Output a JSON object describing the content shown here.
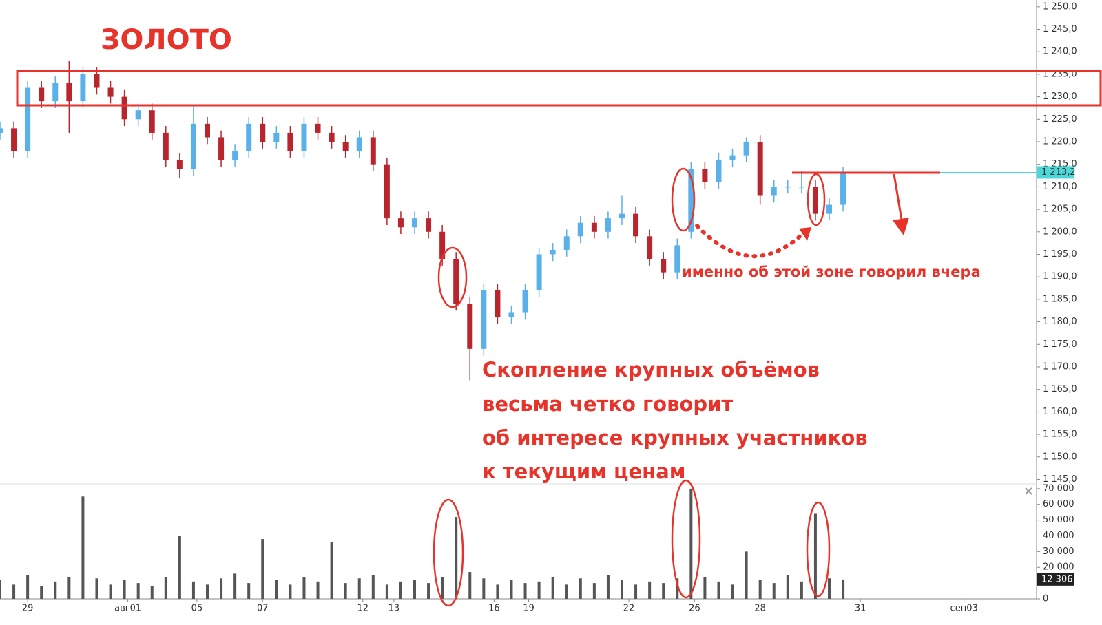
{
  "chart_data": {
    "type": "candlestick",
    "title": "ЗОЛОТО",
    "annotations": [
      "именно об этой зоне говорил вчера",
      "Скопление крупных объёмов",
      "весьма четко говорит",
      "об интересе крупных участников",
      "к текущим ценам"
    ],
    "x": [
      0,
      4,
      8,
      12,
      16,
      20,
      24,
      28,
      32,
      36,
      40,
      44,
      48,
      52,
      56,
      60,
      64,
      68,
      72,
      76,
      80,
      84,
      88,
      92,
      96,
      100,
      104,
      108,
      112,
      116,
      120,
      124,
      128,
      132,
      136,
      140,
      144,
      148,
      152,
      156,
      160,
      164,
      168,
      172,
      176,
      180,
      184,
      188,
      192,
      196,
      200,
      204,
      208,
      212,
      216,
      220,
      224,
      228,
      232,
      236,
      240,
      244
    ],
    "open": [
      1222,
      1223,
      1218,
      1232,
      1229,
      1233,
      1229,
      1235,
      1232,
      1230,
      1225,
      1227,
      1222,
      1216,
      1214,
      1224,
      1221,
      1216,
      1218,
      1224,
      1220,
      1222,
      1218,
      1224,
      1222,
      1220,
      1218,
      1221,
      1215,
      1203,
      1201,
      1203,
      1200,
      1194,
      1184,
      1174,
      1187,
      1181,
      1182,
      1187,
      1195,
      1196,
      1199,
      1202,
      1200,
      1203,
      1204,
      1199,
      1194,
      1191,
      1200,
      1214,
      1211,
      1216,
      1217,
      1220,
      1208,
      1210,
      1210,
      1210,
      1204,
      1206
    ],
    "high": [
      1224.5,
      1224.5,
      1233.5,
      1233.5,
      1234.5,
      1238,
      1236.5,
      1236.5,
      1233.5,
      1231.5,
      1228.5,
      1228.5,
      1223.5,
      1217.5,
      1228,
      1225.5,
      1222.5,
      1219.5,
      1225.5,
      1225.5,
      1223.5,
      1223.5,
      1225.5,
      1225.5,
      1223.5,
      1221.5,
      1222.5,
      1222.5,
      1216.5,
      1204.5,
      1204.5,
      1204.5,
      1201.5,
      1195.5,
      1185.5,
      1188.5,
      1188.5,
      1183.5,
      1188.5,
      1196.5,
      1197.5,
      1200.5,
      1203.5,
      1203.5,
      1204.5,
      1208,
      1205.5,
      1200.5,
      1195.5,
      1198.5,
      1215.5,
      1215.5,
      1217.5,
      1218.5,
      1221,
      1221.5,
      1211.5,
      1211.5,
      1213.5,
      1211.5,
      1207.5,
      1214.5
    ],
    "low": [
      1220.5,
      1216.5,
      1216.5,
      1227.5,
      1227.5,
      1222,
      1227.5,
      1230.5,
      1228.5,
      1223.5,
      1223.5,
      1220.5,
      1214.5,
      1212,
      1212.5,
      1219.5,
      1214.5,
      1214.5,
      1216.5,
      1218.5,
      1218.5,
      1216.5,
      1216.5,
      1220.5,
      1218.5,
      1216.5,
      1216.5,
      1213.5,
      1201.5,
      1199.5,
      1199.5,
      1198.5,
      1192.5,
      1182.5,
      1167,
      1172.5,
      1179.5,
      1179.5,
      1180.5,
      1185.5,
      1193.5,
      1194.5,
      1197.5,
      1198.5,
      1198.5,
      1201.5,
      1197.5,
      1192.5,
      1189.5,
      1189.5,
      1198.5,
      1209.5,
      1209.5,
      1214.5,
      1215.5,
      1206,
      1206.5,
      1208.5,
      1208.5,
      1202.5,
      1202.5,
      1204.5
    ],
    "close": [
      1223,
      1218,
      1232,
      1229,
      1233,
      1229,
      1235,
      1232,
      1230,
      1225,
      1227,
      1222,
      1216,
      1214,
      1224,
      1221,
      1216,
      1218,
      1224,
      1220,
      1222,
      1218,
      1224,
      1222,
      1220,
      1218,
      1221,
      1215,
      1203,
      1201,
      1203,
      1200,
      1194,
      1184,
      1174,
      1187,
      1181,
      1182,
      1187,
      1195,
      1196,
      1199,
      1202,
      1200,
      1203,
      1204,
      1199,
      1194,
      1191,
      1197,
      1214,
      1211,
      1216,
      1217,
      1220,
      1208,
      1210,
      1210,
      1210,
      1204,
      1206,
      1213.2
    ],
    "volume": [
      12000,
      9000,
      15000,
      8000,
      11000,
      14000,
      65000,
      13000,
      9000,
      12000,
      10000,
      8000,
      14000,
      40000,
      11000,
      9000,
      13000,
      16000,
      10000,
      38000,
      12000,
      9000,
      14000,
      11000,
      36000,
      10000,
      13000,
      15000,
      9000,
      11000,
      12000,
      10000,
      14000,
      52000,
      17000,
      13000,
      9000,
      12000,
      10000,
      11000,
      14000,
      9000,
      13000,
      10000,
      15000,
      12000,
      9000,
      11000,
      10000,
      13000,
      70000,
      14000,
      11000,
      9000,
      30000,
      12000,
      10000,
      15000,
      11000,
      54000,
      13000,
      12306
    ],
    "up_color": "#5ab0e8",
    "down_color": "#b8252c",
    "xlim": [
      0,
      300
    ],
    "xticks": [
      {
        "value": 8,
        "label": "29"
      },
      {
        "value": 37,
        "label": "авг01"
      },
      {
        "value": 57,
        "label": "05"
      },
      {
        "value": 76,
        "label": "07"
      },
      {
        "value": 105,
        "label": "12"
      },
      {
        "value": 114,
        "label": "13"
      },
      {
        "value": 143,
        "label": "16"
      },
      {
        "value": 153,
        "label": "19"
      },
      {
        "value": 182,
        "label": "22"
      },
      {
        "value": 201,
        "label": "26"
      },
      {
        "value": 220,
        "label": "28"
      },
      {
        "value": 249,
        "label": "31"
      },
      {
        "value": 279,
        "label": "сен03"
      }
    ],
    "ylim": [
      1144,
      1251.5
    ],
    "yticks": [
      {
        "value": 1145,
        "label": "1 145,0"
      },
      {
        "value": 1150,
        "label": "1 150,0"
      },
      {
        "value": 1155,
        "label": "1 155,0"
      },
      {
        "value": 1160,
        "label": "1 160,0"
      },
      {
        "value": 1165,
        "label": "1 165,0"
      },
      {
        "value": 1170,
        "label": "1 170,0"
      },
      {
        "value": 1175,
        "label": "1 175,0"
      },
      {
        "value": 1180,
        "label": "1 180,0"
      },
      {
        "value": 1185,
        "label": "1 185,0"
      },
      {
        "value": 1190,
        "label": "1 190,0"
      },
      {
        "value": 1195,
        "label": "1 195,0"
      },
      {
        "value": 1200,
        "label": "1 200,0"
      },
      {
        "value": 1205,
        "label": "1 205,0"
      },
      {
        "value": 1210,
        "label": "1 210,0"
      },
      {
        "value": 1215,
        "label": "1 215,0"
      },
      {
        "value": 1220,
        "label": "1 220,0"
      },
      {
        "value": 1225,
        "label": "1 225,0"
      },
      {
        "value": 1230,
        "label": "1 230,0"
      },
      {
        "value": 1235,
        "label": "1 235,0"
      },
      {
        "value": 1240,
        "label": "1 240,0"
      },
      {
        "value": 1245,
        "label": "1 245,0"
      },
      {
        "value": 1250,
        "label": "1 250,0"
      }
    ],
    "last_price": {
      "value": 1213.2,
      "label": "1 213,2"
    },
    "volume_ylim": [
      0,
      73000
    ],
    "volume_yticks": [
      {
        "value": 0,
        "label": "0"
      },
      {
        "value": 20000,
        "label": "20 000"
      },
      {
        "value": 30000,
        "label": "30 000"
      },
      {
        "value": 40000,
        "label": "40 000"
      },
      {
        "value": 50000,
        "label": "50 000"
      },
      {
        "value": 60000,
        "label": "60 000"
      },
      {
        "value": 70000,
        "label": "70 000"
      }
    ],
    "last_volume": {
      "value": 12306,
      "label": "12 306"
    }
  }
}
